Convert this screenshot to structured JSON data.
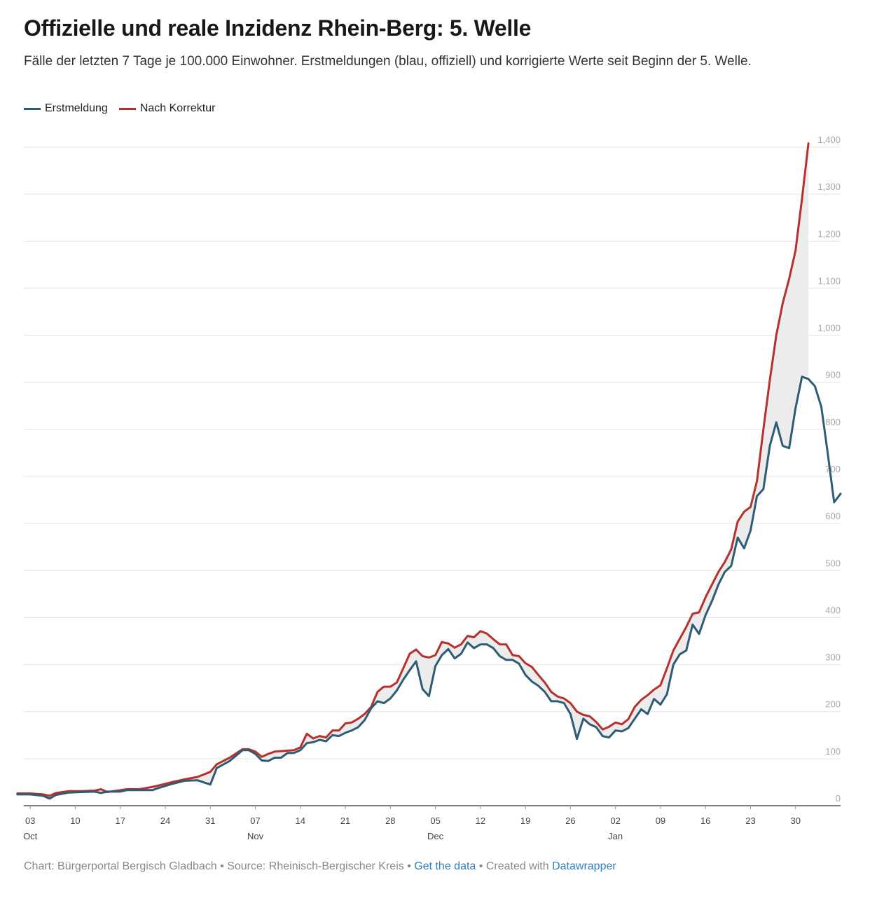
{
  "title": "Offizielle und reale Inzidenz Rhein-Berg: 5. Welle",
  "subtitle": "Fälle der letzten 7 Tage je 100.000 Einwohner. Erstmeldungen (blau, offiziell) und korrigierte Werte seit Beginn der 5. Welle.",
  "footer": {
    "chart_credit": "Chart: Bürgerportal Bergisch Gladbach",
    "separator": " • ",
    "source": "Source: Rheinisch-Bergischer Kreis",
    "get_data": "Get the data",
    "created_with": "Created with",
    "datawrapper": "Datawrapper"
  },
  "colors": {
    "erstmeldung": "#2e5c75",
    "korrektur": "#b8302c",
    "gap_fill": "#ececec"
  },
  "chart_data": {
    "type": "line",
    "title": "Offizielle und reale Inzidenz Rhein-Berg: 5. Welle",
    "ylim": [
      0,
      1400
    ],
    "y_ticks": [
      0,
      100,
      200,
      300,
      400,
      500,
      600,
      700,
      800,
      900,
      1000,
      1100,
      1200,
      1300,
      1400
    ],
    "y_tick_labels": [
      "0",
      "100",
      "200",
      "300",
      "400",
      "500",
      "600",
      "700",
      "800",
      "900",
      "1,000",
      "1,100",
      "1,200",
      "1,300",
      "1,400"
    ],
    "y_axis_side": "right",
    "grid": true,
    "legend_position": "top-left",
    "x_start": "2021-10-02",
    "x_end": "2022-02-06",
    "x_ticks": [
      {
        "date": "2021-10-03",
        "label": "03",
        "sub": "Oct"
      },
      {
        "date": "2021-10-10",
        "label": "10",
        "sub": ""
      },
      {
        "date": "2021-10-17",
        "label": "17",
        "sub": ""
      },
      {
        "date": "2021-10-24",
        "label": "24",
        "sub": ""
      },
      {
        "date": "2021-10-31",
        "label": "31",
        "sub": ""
      },
      {
        "date": "2021-11-07",
        "label": "07",
        "sub": "Nov"
      },
      {
        "date": "2021-11-14",
        "label": "14",
        "sub": ""
      },
      {
        "date": "2021-11-21",
        "label": "21",
        "sub": ""
      },
      {
        "date": "2021-11-28",
        "label": "28",
        "sub": ""
      },
      {
        "date": "2021-12-05",
        "label": "05",
        "sub": "Dec"
      },
      {
        "date": "2021-12-12",
        "label": "12",
        "sub": ""
      },
      {
        "date": "2021-12-19",
        "label": "19",
        "sub": ""
      },
      {
        "date": "2021-12-26",
        "label": "26",
        "sub": ""
      },
      {
        "date": "2022-01-02",
        "label": "02",
        "sub": "Jan"
      },
      {
        "date": "2022-01-09",
        "label": "09",
        "sub": ""
      },
      {
        "date": "2022-01-16",
        "label": "16",
        "sub": ""
      },
      {
        "date": "2022-01-23",
        "label": "23",
        "sub": ""
      },
      {
        "date": "2022-01-30",
        "label": "30",
        "sub": ""
      }
    ],
    "series": [
      {
        "name": "Erstmeldung",
        "color": "#2e5c75",
        "points": [
          [
            "2021-10-01",
            24
          ],
          [
            "2021-10-03",
            24
          ],
          [
            "2021-10-05",
            21
          ],
          [
            "2021-10-06",
            15
          ],
          [
            "2021-10-07",
            23
          ],
          [
            "2021-10-09",
            28
          ],
          [
            "2021-10-11",
            29
          ],
          [
            "2021-10-13",
            30
          ],
          [
            "2021-10-14",
            27
          ],
          [
            "2021-10-15",
            30
          ],
          [
            "2021-10-17",
            30
          ],
          [
            "2021-10-18",
            33
          ],
          [
            "2021-10-20",
            33
          ],
          [
            "2021-10-22",
            33
          ],
          [
            "2021-10-23",
            38
          ],
          [
            "2021-10-25",
            46
          ],
          [
            "2021-10-27",
            53
          ],
          [
            "2021-10-29",
            54
          ],
          [
            "2021-10-31",
            45
          ],
          [
            "2021-11-01",
            80
          ],
          [
            "2021-11-03",
            95
          ],
          [
            "2021-11-05",
            118
          ],
          [
            "2021-11-06",
            118
          ],
          [
            "2021-11-07",
            110
          ],
          [
            "2021-11-08",
            96
          ],
          [
            "2021-11-09",
            95
          ],
          [
            "2021-11-10",
            102
          ],
          [
            "2021-11-11",
            102
          ],
          [
            "2021-11-12",
            112
          ],
          [
            "2021-11-13",
            112
          ],
          [
            "2021-11-14",
            118
          ],
          [
            "2021-11-15",
            133
          ],
          [
            "2021-11-16",
            135
          ],
          [
            "2021-11-17",
            140
          ],
          [
            "2021-11-18",
            137
          ],
          [
            "2021-11-19",
            150
          ],
          [
            "2021-11-20",
            148
          ],
          [
            "2021-11-21",
            155
          ],
          [
            "2021-11-22",
            160
          ],
          [
            "2021-11-23",
            167
          ],
          [
            "2021-11-24",
            182
          ],
          [
            "2021-11-25",
            207
          ],
          [
            "2021-11-26",
            222
          ],
          [
            "2021-11-27",
            218
          ],
          [
            "2021-11-28",
            228
          ],
          [
            "2021-11-29",
            245
          ],
          [
            "2021-11-30",
            268
          ],
          [
            "2021-12-01",
            288
          ],
          [
            "2021-12-02",
            307
          ],
          [
            "2021-12-03",
            248
          ],
          [
            "2021-12-04",
            233
          ],
          [
            "2021-12-05",
            297
          ],
          [
            "2021-12-06",
            320
          ],
          [
            "2021-12-07",
            333
          ],
          [
            "2021-12-08",
            313
          ],
          [
            "2021-12-09",
            323
          ],
          [
            "2021-12-10",
            347
          ],
          [
            "2021-12-11",
            335
          ],
          [
            "2021-12-12",
            343
          ],
          [
            "2021-12-13",
            343
          ],
          [
            "2021-12-14",
            335
          ],
          [
            "2021-12-15",
            318
          ],
          [
            "2021-12-16",
            310
          ],
          [
            "2021-12-17",
            310
          ],
          [
            "2021-12-18",
            302
          ],
          [
            "2021-12-19",
            278
          ],
          [
            "2021-12-20",
            264
          ],
          [
            "2021-12-21",
            255
          ],
          [
            "2021-12-22",
            242
          ],
          [
            "2021-12-23",
            222
          ],
          [
            "2021-12-24",
            222
          ],
          [
            "2021-12-25",
            218
          ],
          [
            "2021-12-26",
            195
          ],
          [
            "2021-12-27",
            142
          ],
          [
            "2021-12-28",
            185
          ],
          [
            "2021-12-29",
            173
          ],
          [
            "2021-12-30",
            167
          ],
          [
            "2021-12-31",
            148
          ],
          [
            "2022-01-01",
            145
          ],
          [
            "2022-01-02",
            160
          ],
          [
            "2022-01-03",
            158
          ],
          [
            "2022-01-04",
            165
          ],
          [
            "2022-01-05",
            185
          ],
          [
            "2022-01-06",
            205
          ],
          [
            "2022-01-07",
            195
          ],
          [
            "2022-01-08",
            227
          ],
          [
            "2022-01-09",
            215
          ],
          [
            "2022-01-10",
            237
          ],
          [
            "2022-01-11",
            300
          ],
          [
            "2022-01-12",
            322
          ],
          [
            "2022-01-13",
            330
          ],
          [
            "2022-01-14",
            385
          ],
          [
            "2022-01-15",
            365
          ],
          [
            "2022-01-16",
            405
          ],
          [
            "2022-01-17",
            435
          ],
          [
            "2022-01-18",
            470
          ],
          [
            "2022-01-19",
            497
          ],
          [
            "2022-01-20",
            510
          ],
          [
            "2022-01-21",
            570
          ],
          [
            "2022-01-22",
            547
          ],
          [
            "2022-01-23",
            585
          ],
          [
            "2022-01-24",
            658
          ],
          [
            "2022-01-25",
            673
          ],
          [
            "2022-01-26",
            765
          ],
          [
            "2022-01-27",
            815
          ],
          [
            "2022-01-28",
            765
          ],
          [
            "2022-01-29",
            760
          ],
          [
            "2022-01-30",
            845
          ],
          [
            "2022-01-31",
            912
          ],
          [
            "2022-02-01",
            907
          ],
          [
            "2022-02-02",
            892
          ],
          [
            "2022-02-03",
            848
          ],
          [
            "2022-02-04",
            750
          ],
          [
            "2022-02-05",
            645
          ],
          [
            "2022-02-06",
            663
          ]
        ]
      },
      {
        "name": "Nach Korrektur",
        "color": "#b8302c",
        "points": [
          [
            "2021-10-01",
            26
          ],
          [
            "2021-10-03",
            26
          ],
          [
            "2021-10-05",
            24
          ],
          [
            "2021-10-06",
            21
          ],
          [
            "2021-10-07",
            27
          ],
          [
            "2021-10-09",
            31
          ],
          [
            "2021-10-11",
            31
          ],
          [
            "2021-10-13",
            32
          ],
          [
            "2021-10-14",
            35
          ],
          [
            "2021-10-15",
            29
          ],
          [
            "2021-10-17",
            33
          ],
          [
            "2021-10-18",
            35
          ],
          [
            "2021-10-20",
            35
          ],
          [
            "2021-10-22",
            40
          ],
          [
            "2021-10-23",
            43
          ],
          [
            "2021-10-25",
            50
          ],
          [
            "2021-10-27",
            56
          ],
          [
            "2021-10-29",
            61
          ],
          [
            "2021-10-31",
            72
          ],
          [
            "2021-11-01",
            88
          ],
          [
            "2021-11-03",
            102
          ],
          [
            "2021-11-05",
            120
          ],
          [
            "2021-11-06",
            120
          ],
          [
            "2021-11-07",
            115
          ],
          [
            "2021-11-08",
            104
          ],
          [
            "2021-11-09",
            110
          ],
          [
            "2021-11-10",
            115
          ],
          [
            "2021-11-11",
            116
          ],
          [
            "2021-11-12",
            117
          ],
          [
            "2021-11-13",
            118
          ],
          [
            "2021-11-14",
            124
          ],
          [
            "2021-11-15",
            153
          ],
          [
            "2021-11-16",
            143
          ],
          [
            "2021-11-17",
            148
          ],
          [
            "2021-11-18",
            145
          ],
          [
            "2021-11-19",
            160
          ],
          [
            "2021-11-20",
            160
          ],
          [
            "2021-11-21",
            175
          ],
          [
            "2021-11-22",
            177
          ],
          [
            "2021-11-23",
            185
          ],
          [
            "2021-11-24",
            195
          ],
          [
            "2021-11-25",
            210
          ],
          [
            "2021-11-26",
            242
          ],
          [
            "2021-11-27",
            253
          ],
          [
            "2021-11-28",
            253
          ],
          [
            "2021-11-29",
            262
          ],
          [
            "2021-11-30",
            292
          ],
          [
            "2021-12-01",
            323
          ],
          [
            "2021-12-02",
            332
          ],
          [
            "2021-12-03",
            318
          ],
          [
            "2021-12-04",
            315
          ],
          [
            "2021-12-05",
            320
          ],
          [
            "2021-12-06",
            348
          ],
          [
            "2021-12-07",
            345
          ],
          [
            "2021-12-08",
            336
          ],
          [
            "2021-12-09",
            343
          ],
          [
            "2021-12-10",
            361
          ],
          [
            "2021-12-11",
            358
          ],
          [
            "2021-12-12",
            371
          ],
          [
            "2021-12-13",
            366
          ],
          [
            "2021-12-14",
            354
          ],
          [
            "2021-12-15",
            343
          ],
          [
            "2021-12-16",
            343
          ],
          [
            "2021-12-17",
            320
          ],
          [
            "2021-12-18",
            318
          ],
          [
            "2021-12-19",
            303
          ],
          [
            "2021-12-20",
            295
          ],
          [
            "2021-12-21",
            278
          ],
          [
            "2021-12-22",
            262
          ],
          [
            "2021-12-23",
            242
          ],
          [
            "2021-12-24",
            232
          ],
          [
            "2021-12-25",
            228
          ],
          [
            "2021-12-26",
            218
          ],
          [
            "2021-12-27",
            200
          ],
          [
            "2021-12-28",
            193
          ],
          [
            "2021-12-29",
            190
          ],
          [
            "2021-12-30",
            178
          ],
          [
            "2021-12-31",
            162
          ],
          [
            "2022-01-01",
            168
          ],
          [
            "2022-01-02",
            177
          ],
          [
            "2022-01-03",
            173
          ],
          [
            "2022-01-04",
            184
          ],
          [
            "2022-01-05",
            210
          ],
          [
            "2022-01-06",
            225
          ],
          [
            "2022-01-07",
            235
          ],
          [
            "2022-01-08",
            247
          ],
          [
            "2022-01-09",
            256
          ],
          [
            "2022-01-10",
            292
          ],
          [
            "2022-01-11",
            330
          ],
          [
            "2022-01-12",
            355
          ],
          [
            "2022-01-13",
            380
          ],
          [
            "2022-01-14",
            408
          ],
          [
            "2022-01-15",
            411
          ],
          [
            "2022-01-16",
            443
          ],
          [
            "2022-01-17",
            470
          ],
          [
            "2022-01-18",
            497
          ],
          [
            "2022-01-19",
            518
          ],
          [
            "2022-01-20",
            545
          ],
          [
            "2022-01-21",
            604
          ],
          [
            "2022-01-22",
            625
          ],
          [
            "2022-01-23",
            635
          ],
          [
            "2022-01-24",
            690
          ],
          [
            "2022-01-25",
            800
          ],
          [
            "2022-01-26",
            905
          ],
          [
            "2022-01-27",
            1000
          ],
          [
            "2022-01-28",
            1068
          ],
          [
            "2022-01-29",
            1120
          ],
          [
            "2022-01-30",
            1180
          ],
          [
            "2022-01-31",
            1290
          ],
          [
            "2022-02-01",
            1408
          ]
        ]
      }
    ]
  }
}
